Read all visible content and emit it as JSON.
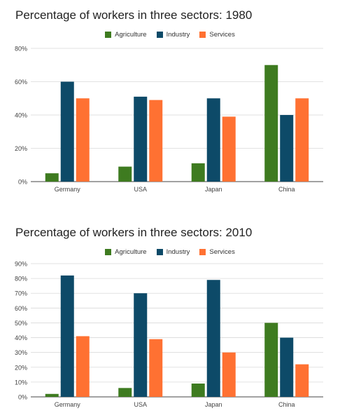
{
  "chart_data": [
    {
      "type": "bar",
      "title": "Percentage of workers in three sectors: 1980",
      "categories": [
        "Germany",
        "USA",
        "Japan",
        "China"
      ],
      "series": [
        {
          "name": "Agriculture",
          "color": "#3e7b20",
          "values": [
            5,
            9,
            11,
            70
          ]
        },
        {
          "name": "Industry",
          "color": "#0d4a68",
          "values": [
            60,
            51,
            50,
            40
          ]
        },
        {
          "name": "Services",
          "color": "#ff7132",
          "values": [
            50,
            49,
            39,
            50
          ]
        }
      ],
      "ylim": [
        0,
        80
      ],
      "yticks": [
        "0%",
        "20%",
        "40%",
        "60%",
        "80%"
      ],
      "grid": true,
      "legend_position": "top-center"
    },
    {
      "type": "bar",
      "title": "Percentage of workers in three sectors: 2010",
      "categories": [
        "Germany",
        "USA",
        "Japan",
        "China"
      ],
      "series": [
        {
          "name": "Agriculture",
          "color": "#3e7b20",
          "values": [
            2,
            6,
            9,
            50
          ]
        },
        {
          "name": "Industry",
          "color": "#0d4a68",
          "values": [
            82,
            70,
            79,
            40
          ]
        },
        {
          "name": "Services",
          "color": "#ff7132",
          "values": [
            41,
            39,
            30,
            22
          ]
        }
      ],
      "ylim": [
        0,
        90
      ],
      "yticks": [
        "0%",
        "10%",
        "20%",
        "30%",
        "40%",
        "50%",
        "60%",
        "70%",
        "80%",
        "90%"
      ],
      "grid": true,
      "legend_position": "top-center"
    }
  ]
}
